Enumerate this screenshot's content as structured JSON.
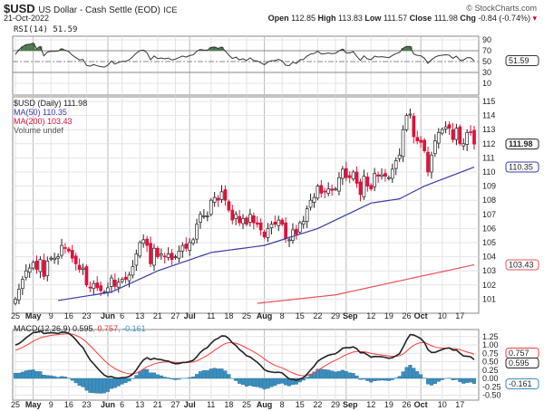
{
  "header": {
    "symbol": "$USD",
    "name": "US Dollar - Cash Settle (EOD)",
    "exchange": "ICE",
    "date": "21-Oct-2022",
    "brand": "© StockCharts.com",
    "open_label": "Open",
    "open": "112.85",
    "high_label": "High",
    "high": "113.83",
    "low_label": "Low",
    "low": "111.57",
    "close_label": "Close",
    "close": "111.98",
    "chg_label": "Chg",
    "chg": "-0.84 (-0.74%)"
  },
  "colors": {
    "up": "#ffffff",
    "down": "#e0103a",
    "ma50": "#3a3aa8",
    "ma200": "#e8505a",
    "macd": "#222222",
    "signal": "#ff3a3a",
    "hist": "#3a8fc0",
    "rsi_fill": "#4a7a4a"
  },
  "rsi": {
    "legend": "RSI(14) 51.59",
    "last": "51.59",
    "ticks": [
      "90",
      "70",
      "50",
      "30",
      "10"
    ]
  },
  "price": {
    "legend": "$USD (Daily) 111.98",
    "ma50_legend": "MA(50) 110.35",
    "ma200_legend": "MA(200) 103.43",
    "volume_legend": "Volume undef",
    "last": "111.98",
    "ma50_last": "110.35",
    "ma200_last": "103.43"
  },
  "macd": {
    "legend_a": "MACD(12,26,9) 0.595",
    "legend_b": ", 0.757",
    "legend_c": ", -0.161",
    "macd_last": "0.595",
    "signal_last": "0.757",
    "hist_last": "-0.161",
    "ticks": [
      "1.25",
      "1.00",
      "0.75",
      "0.50",
      "0.25",
      "0.00",
      "-0.25",
      "-0.50"
    ]
  },
  "chart_data": {
    "type": "candlestick",
    "title": "$USD US Dollar - Cash Settle (EOD)",
    "ylim": [
      100.3,
      115.3
    ],
    "yticks": [
      101,
      102,
      103,
      104,
      105,
      106,
      107,
      108,
      109,
      110,
      111,
      112,
      113,
      114,
      115
    ],
    "xlabels": [
      {
        "t": "25",
        "d": 0,
        "b": false
      },
      {
        "t": "May",
        "d": 5,
        "b": true
      },
      {
        "t": "9",
        "d": 10,
        "b": false
      },
      {
        "t": "16",
        "d": 15,
        "b": false
      },
      {
        "t": "23",
        "d": 20,
        "b": false
      },
      {
        "t": "Jun",
        "d": 26,
        "b": true
      },
      {
        "t": "6",
        "d": 30,
        "b": false
      },
      {
        "t": "13",
        "d": 35,
        "b": false
      },
      {
        "t": "21",
        "d": 40,
        "b": false
      },
      {
        "t": "27",
        "d": 45,
        "b": false
      },
      {
        "t": "Jul",
        "d": 49,
        "b": true
      },
      {
        "t": "11",
        "d": 55,
        "b": false
      },
      {
        "t": "18",
        "d": 60,
        "b": false
      },
      {
        "t": "25",
        "d": 65,
        "b": false
      },
      {
        "t": "Aug",
        "d": 70,
        "b": true
      },
      {
        "t": "8",
        "d": 75,
        "b": false
      },
      {
        "t": "15",
        "d": 80,
        "b": false
      },
      {
        "t": "22",
        "d": 85,
        "b": false
      },
      {
        "t": "29",
        "d": 90,
        "b": false
      },
      {
        "t": "Sep",
        "d": 93,
        "b": true
      },
      {
        "t": "12",
        "d": 100,
        "b": false
      },
      {
        "t": "19",
        "d": 105,
        "b": false
      },
      {
        "t": "26",
        "d": 110,
        "b": false
      },
      {
        "t": "Oct",
        "d": 114,
        "b": true
      },
      {
        "t": "10",
        "d": 120,
        "b": false
      },
      {
        "t": "17",
        "d": 125,
        "b": false
      }
    ],
    "close": [
      101.0,
      101.7,
      102.4,
      103.0,
      103.2,
      103.6,
      103.1,
      103.8,
      102.6,
      103.7,
      103.9,
      103.9,
      104.0,
      104.8,
      104.6,
      104.4,
      103.9,
      103.5,
      103.1,
      103.2,
      102.0,
      101.8,
      102.1,
      101.8,
      101.6,
      101.5,
      101.8,
      102.5,
      101.9,
      102.2,
      102.4,
      102.4,
      102.7,
      103.3,
      104.2,
      105.0,
      105.2,
      104.8,
      103.5,
      104.6,
      104.0,
      104.2,
      104.0,
      104.2,
      103.8,
      104.0,
      104.4,
      104.8,
      104.6,
      105.0,
      105.2,
      106.3,
      107.0,
      106.9,
      106.9,
      108.0,
      108.2,
      108.0,
      108.6,
      108.0,
      107.3,
      106.6,
      107.0,
      106.4,
      106.7,
      106.3,
      107.0,
      106.4,
      106.3,
      105.9,
      105.4,
      106.0,
      106.3,
      106.3,
      106.6,
      106.3,
      105.3,
      105.2,
      105.9,
      105.6,
      106.4,
      106.5,
      107.4,
      108.0,
      108.2,
      109.0,
      108.5,
      108.6,
      108.8,
      108.7,
      108.8,
      109.6,
      110.2,
      109.6,
      109.6,
      110.0,
      109.2,
      108.4,
      109.7,
      109.0,
      108.8,
      109.9,
      109.7,
      109.8,
      109.7,
      109.6,
      110.2,
      110.8,
      111.2,
      113.0,
      114.0,
      114.1,
      112.5,
      112.2,
      112.1,
      111.5,
      110.0,
      111.2,
      112.2,
      112.8,
      113.0,
      113.2,
      113.1,
      112.3,
      113.1,
      112.0,
      112.0,
      112.8,
      112.8,
      111.98
    ],
    "ma50": [
      [
        12,
        100.9
      ],
      [
        27,
        101.5
      ],
      [
        40,
        103.0
      ],
      [
        55,
        104.3
      ],
      [
        70,
        104.8
      ],
      [
        85,
        106.0
      ],
      [
        100,
        107.8
      ],
      [
        108,
        108.1
      ],
      [
        115,
        109.0
      ],
      [
        129,
        110.35
      ]
    ],
    "ma200": [
      [
        68,
        100.7
      ],
      [
        90,
        101.3
      ],
      [
        110,
        102.4
      ],
      [
        129,
        103.43
      ]
    ]
  }
}
